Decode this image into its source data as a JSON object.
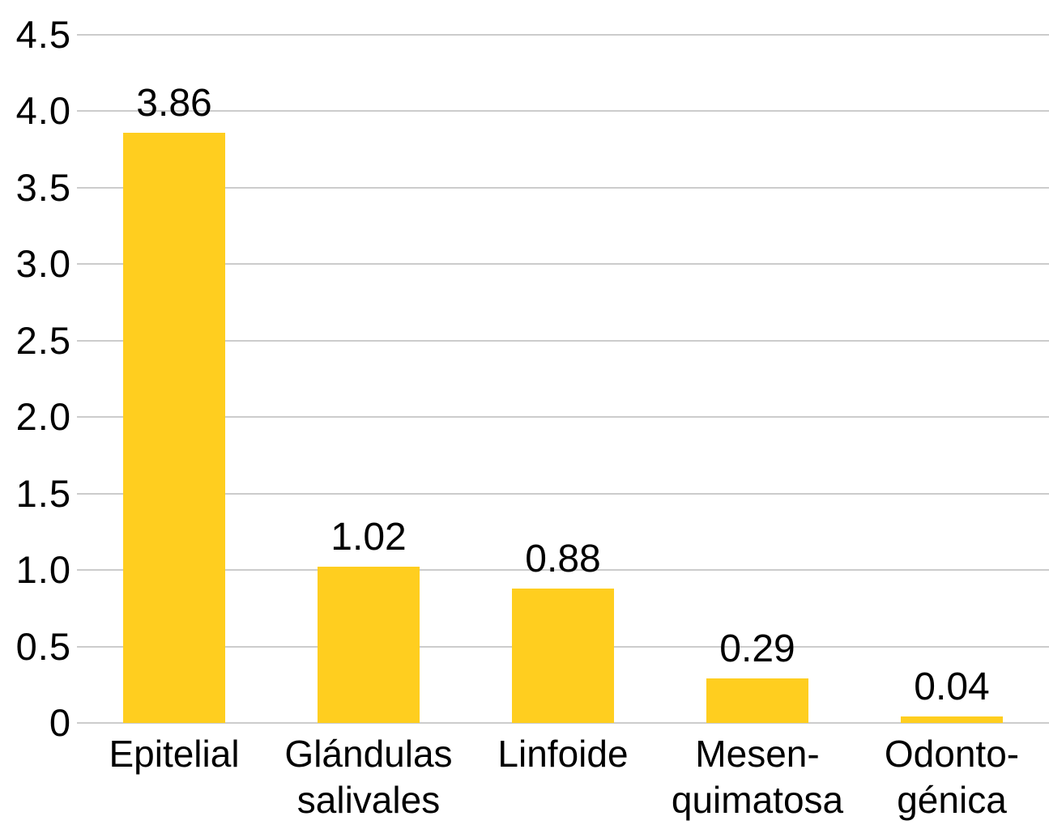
{
  "chart_data": {
    "type": "bar",
    "title": "",
    "xlabel": "",
    "ylabel": "",
    "categories": [
      "Epitelial",
      "Glándulas salivales",
      "Linfoide",
      "Mesenquimatosa",
      "Odontogénica"
    ],
    "category_label_lines": [
      [
        "Epitelial"
      ],
      [
        "Glándulas",
        "salivales"
      ],
      [
        "Linfoide"
      ],
      [
        "Mesen-",
        "quimatosa"
      ],
      [
        "Odonto-",
        "génica"
      ]
    ],
    "values": [
      3.86,
      1.02,
      0.88,
      0.29,
      0.04
    ],
    "value_labels": [
      "3.86",
      "1.02",
      "0.88",
      "0.29",
      "0.04"
    ],
    "ylim": [
      0,
      4.5
    ],
    "y_tick_values": [
      0,
      0.5,
      1.0,
      1.5,
      2.0,
      2.5,
      3.0,
      3.5,
      4.0,
      4.5
    ],
    "y_tick_labels": [
      "0",
      "0.5",
      "1.0",
      "1.5",
      "2.0",
      "2.5",
      "3.0",
      "3.5",
      "4.0",
      "4.5"
    ],
    "grid": "horizontal",
    "legend": "none",
    "colors": {
      "bar": "#FFCE1F",
      "grid": "#CCCCCC",
      "text": "#000000",
      "background": "#FFFFFF"
    }
  }
}
